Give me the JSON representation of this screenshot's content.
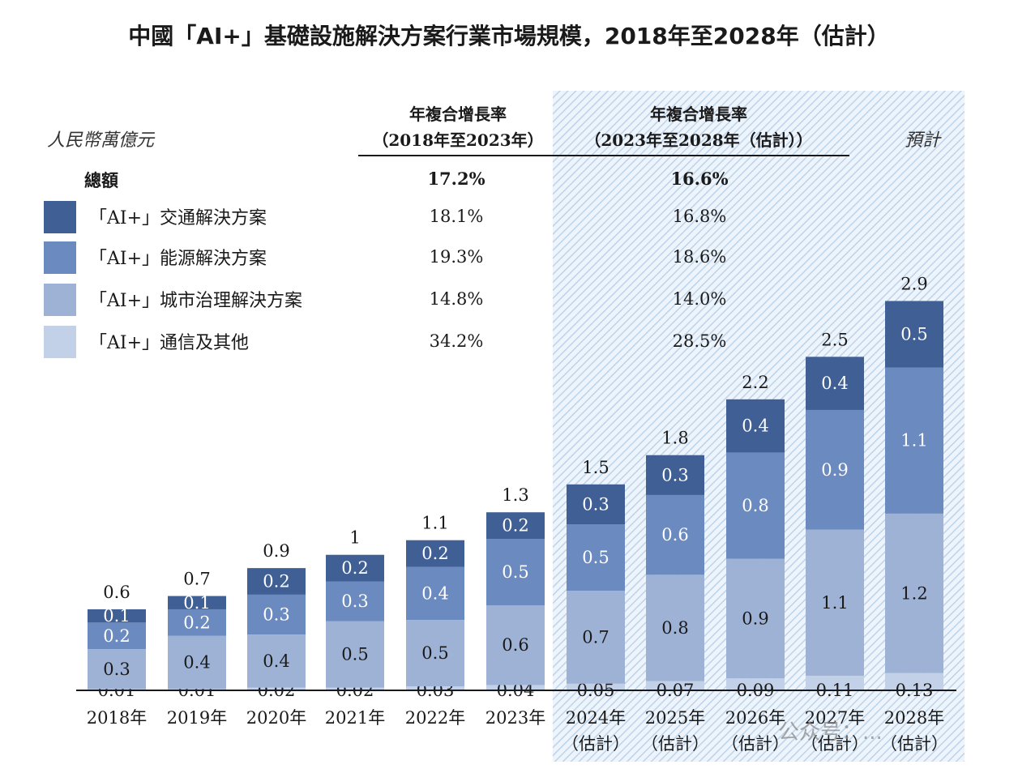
{
  "chart_data": {
    "type": "bar",
    "stacked": true,
    "title": "中國「AI+」基礎設施解決方案行業市場規模，2018年至2028年（估計）",
    "unit_label": "人民幣萬億元",
    "forecast_label": "預計",
    "categories": [
      "2018年",
      "2019年",
      "2020年",
      "2021年",
      "2022年",
      "2023年",
      "2024年\n（估計）",
      "2025年\n（估計）",
      "2026年\n（估計）",
      "2027年\n（估計）",
      "2028年\n（估計）"
    ],
    "forecast_from_index": 6,
    "series": [
      {
        "name": "「AI+」通信及其他",
        "color": "#c3d1e8",
        "values": [
          0.01,
          0.01,
          0.02,
          0.02,
          0.03,
          0.04,
          0.05,
          0.07,
          0.09,
          0.11,
          0.13
        ]
      },
      {
        "name": "「AI+」城市治理解決方案",
        "color": "#9eb2d6",
        "values": [
          0.3,
          0.4,
          0.4,
          0.5,
          0.5,
          0.6,
          0.7,
          0.8,
          0.9,
          1.1,
          1.2
        ]
      },
      {
        "name": "「AI+」能源解決方案",
        "color": "#6b8ac0",
        "values": [
          0.2,
          0.2,
          0.3,
          0.3,
          0.4,
          0.5,
          0.5,
          0.6,
          0.8,
          0.9,
          1.1
        ]
      },
      {
        "name": "「AI+」交通解決方案",
        "color": "#3f5f95",
        "values": [
          0.1,
          0.1,
          0.2,
          0.2,
          0.2,
          0.2,
          0.3,
          0.3,
          0.4,
          0.4,
          0.5
        ]
      }
    ],
    "totals": [
      0.6,
      0.7,
      0.9,
      1.0,
      1.1,
      1.3,
      1.5,
      1.8,
      2.2,
      2.5,
      2.9
    ],
    "cagr_table": {
      "header_1": [
        "年複合增長率",
        "（2018年至2023年）"
      ],
      "header_2": [
        "年複合增長率",
        "（2023年至2028年（估計））"
      ],
      "rows": [
        {
          "label": "總額",
          "c1": "17.2%",
          "c2": "16.6%",
          "bold": true
        },
        {
          "label": "「AI+」交通解決方案",
          "c1": "18.1%",
          "c2": "16.8%"
        },
        {
          "label": "「AI+」能源解決方案",
          "c1": "19.3%",
          "c2": "18.6%"
        },
        {
          "label": "「AI+」城市治理解決方案",
          "c1": "14.8%",
          "c2": "14.0%"
        },
        {
          "label": "「AI+」通信及其他",
          "c1": "34.2%",
          "c2": "28.5%"
        }
      ]
    },
    "legend_position": "top-left",
    "grid": false
  },
  "watermark": "公众号：..."
}
